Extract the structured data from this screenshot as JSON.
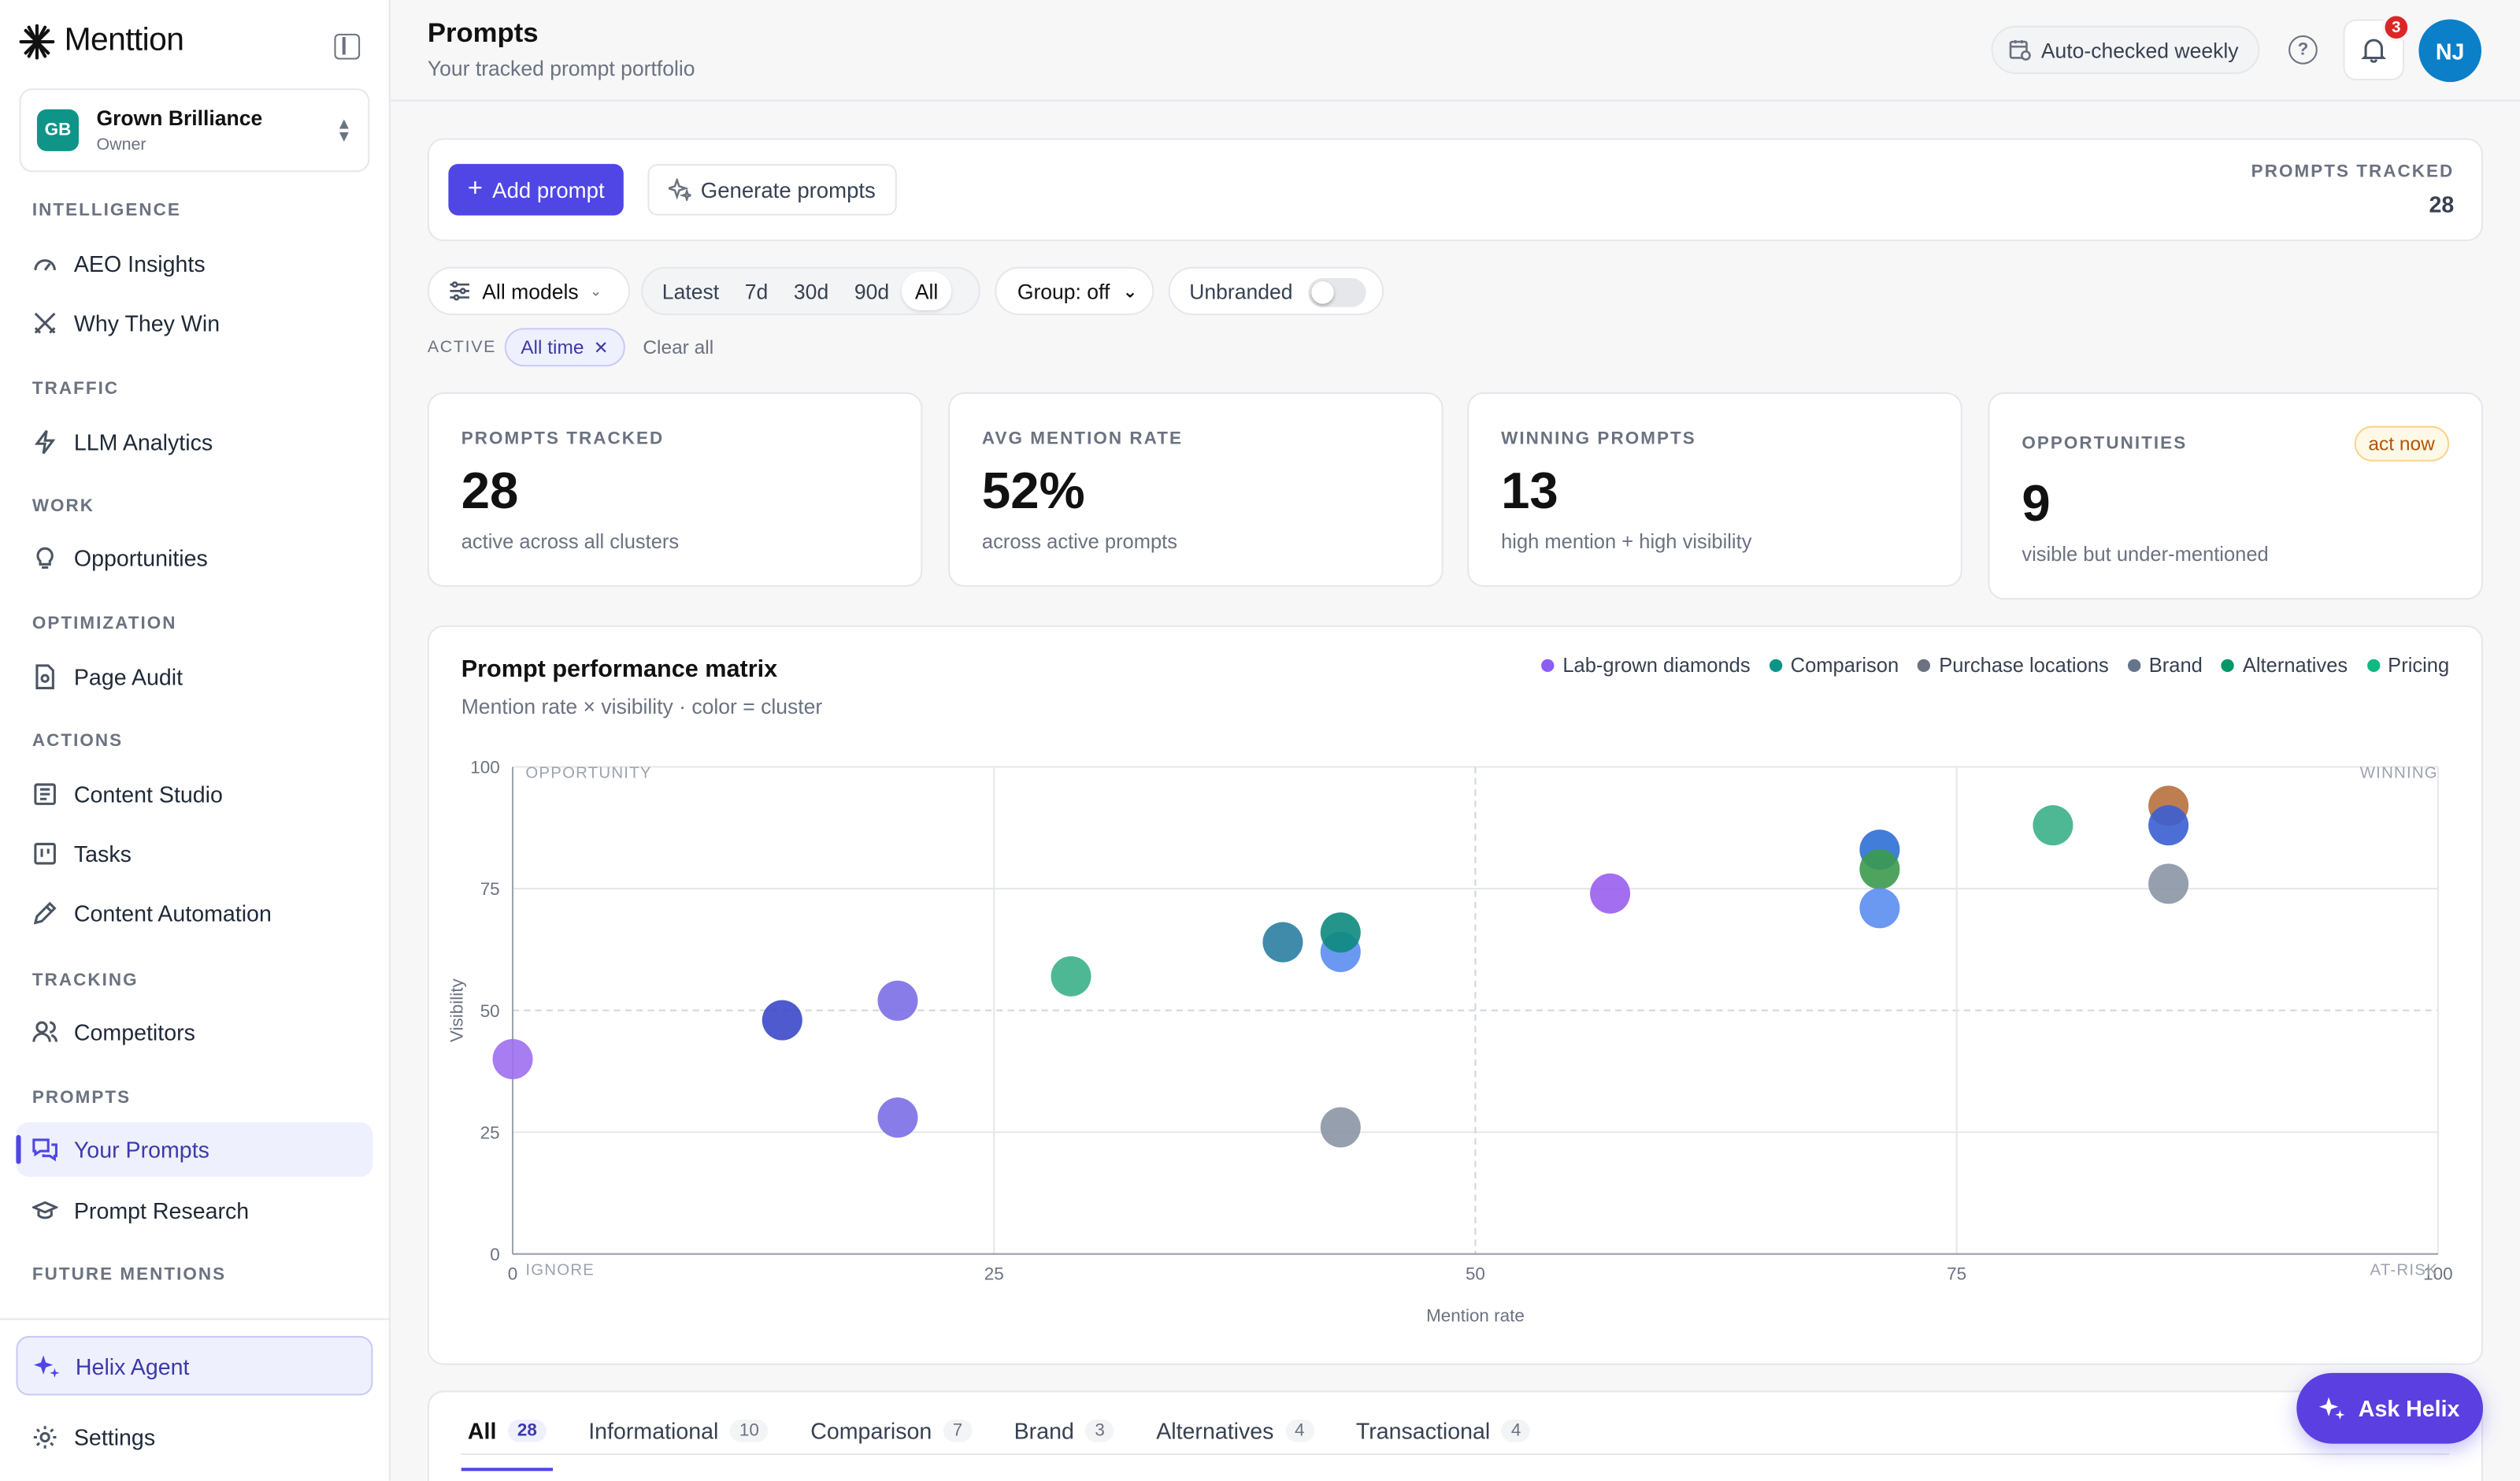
{
  "app": {
    "name": "Menttion",
    "org": {
      "initials": "GB",
      "name": "Grown Brilliance",
      "role": "Owner"
    }
  },
  "sidebar": {
    "sections": [
      {
        "label": "INTELLIGENCE",
        "items": [
          {
            "label": "AEO Insights",
            "icon": "gauge-icon"
          },
          {
            "label": "Why They Win",
            "icon": "crossed-swords-icon"
          }
        ]
      },
      {
        "label": "TRAFFIC",
        "items": [
          {
            "label": "LLM Analytics",
            "icon": "lightning-icon"
          }
        ]
      },
      {
        "label": "WORK",
        "items": [
          {
            "label": "Opportunities",
            "icon": "lightbulb-icon"
          }
        ]
      },
      {
        "label": "OPTIMIZATION",
        "items": [
          {
            "label": "Page Audit",
            "icon": "document-search-icon"
          }
        ]
      },
      {
        "label": "ACTIONS",
        "items": [
          {
            "label": "Content Studio",
            "icon": "newspaper-icon"
          },
          {
            "label": "Tasks",
            "icon": "kanban-icon"
          },
          {
            "label": "Content Automation",
            "icon": "pen-icon"
          }
        ]
      },
      {
        "label": "TRACKING",
        "items": [
          {
            "label": "Competitors",
            "icon": "users-icon"
          }
        ]
      },
      {
        "label": "PROMPTS",
        "items": [
          {
            "label": "Your Prompts",
            "icon": "chat-bubbles-icon",
            "active": true
          },
          {
            "label": "Prompt Research",
            "icon": "graduation-cap-icon"
          }
        ]
      },
      {
        "label": "FUTURE MENTIONS",
        "items": []
      }
    ],
    "helix": "Helix Agent",
    "settings": "Settings"
  },
  "header": {
    "title": "Prompts",
    "subtitle": "Your tracked prompt portfolio",
    "auto_check": "Auto-checked weekly",
    "notifications": "3",
    "user_initials": "NJ"
  },
  "actions": {
    "add_prompt": "Add prompt",
    "generate_prompts": "Generate prompts",
    "prompts_tracked_label": "PROMPTS TRACKED",
    "prompts_tracked_value": "28"
  },
  "filters": {
    "models": "All models",
    "ranges": [
      "Latest",
      "7d",
      "30d",
      "90d",
      "All"
    ],
    "selected_range": "All",
    "group": "Group: off",
    "unbranded": "Unbranded",
    "unbranded_on": false,
    "active_label": "ACTIVE",
    "active_chip": "All time",
    "clear_all": "Clear all"
  },
  "stats": [
    {
      "label": "PROMPTS TRACKED",
      "value": "28",
      "sub": "active across all clusters"
    },
    {
      "label": "AVG MENTION RATE",
      "value": "52%",
      "sub": "across active prompts"
    },
    {
      "label": "WINNING PROMPTS",
      "value": "13",
      "sub": "high mention + high visibility"
    },
    {
      "label": "OPPORTUNITIES",
      "value": "9",
      "sub": "visible but under-mentioned",
      "badge": "act now"
    }
  ],
  "chart_data": {
    "type": "scatter",
    "title": "Prompt performance matrix",
    "subtitle": "Mention rate × visibility · color = cluster",
    "xlabel": "Mention rate",
    "ylabel": "Visibility",
    "xlim": [
      0,
      100
    ],
    "ylim": [
      0,
      100
    ],
    "xticks": [
      0,
      25,
      50,
      75,
      100
    ],
    "yticks": [
      0,
      25,
      50,
      75,
      100
    ],
    "quadrants": {
      "top_left": "OPPORTUNITY",
      "top_right": "WINNING",
      "bottom_left": "IGNORE",
      "bottom_right": "AT-RISK"
    },
    "legend": [
      {
        "name": "Lab-grown diamonds",
        "color": "#8b5cf6"
      },
      {
        "name": "Comparison",
        "color": "#0d9488"
      },
      {
        "name": "Purchase locations",
        "color": "#6b7280"
      },
      {
        "name": "Brand",
        "color": "#64748b"
      },
      {
        "name": "Alternatives",
        "color": "#059669"
      },
      {
        "name": "Pricing",
        "color": "#10b981"
      }
    ],
    "points": [
      {
        "x": 0,
        "y": 40,
        "color": "#9d6ff0"
      },
      {
        "x": 14,
        "y": 48,
        "color": "#3b48c8"
      },
      {
        "x": 20,
        "y": 52,
        "color": "#7b6fe6"
      },
      {
        "x": 20,
        "y": 28,
        "color": "#7b6fe6"
      },
      {
        "x": 29,
        "y": 57,
        "color": "#3bb08a"
      },
      {
        "x": 40,
        "y": 64,
        "color": "#2b7ea1"
      },
      {
        "x": 43,
        "y": 62,
        "color": "#5b8def"
      },
      {
        "x": 43,
        "y": 66,
        "color": "#0d8a7e"
      },
      {
        "x": 43,
        "y": 26,
        "color": "#8b95a5"
      },
      {
        "x": 57,
        "y": 74,
        "color": "#9a5ef0"
      },
      {
        "x": 71,
        "y": 83,
        "color": "#2f6fd6"
      },
      {
        "x": 71,
        "y": 79,
        "color": "#3b9a4e"
      },
      {
        "x": 71,
        "y": 71,
        "color": "#5b8def"
      },
      {
        "x": 80,
        "y": 88,
        "color": "#3bb08a"
      },
      {
        "x": 86,
        "y": 92,
        "color": "#b7703d"
      },
      {
        "x": 86,
        "y": 88,
        "color": "#3a5fd0"
      },
      {
        "x": 86,
        "y": 76,
        "color": "#8b95a5"
      }
    ]
  },
  "tabs": [
    {
      "label": "All",
      "count": "28",
      "active": true
    },
    {
      "label": "Informational",
      "count": "10"
    },
    {
      "label": "Comparison",
      "count": "7"
    },
    {
      "label": "Brand",
      "count": "3"
    },
    {
      "label": "Alternatives",
      "count": "4"
    },
    {
      "label": "Transactional",
      "count": "4"
    }
  ],
  "ask_helix": "Ask Helix"
}
